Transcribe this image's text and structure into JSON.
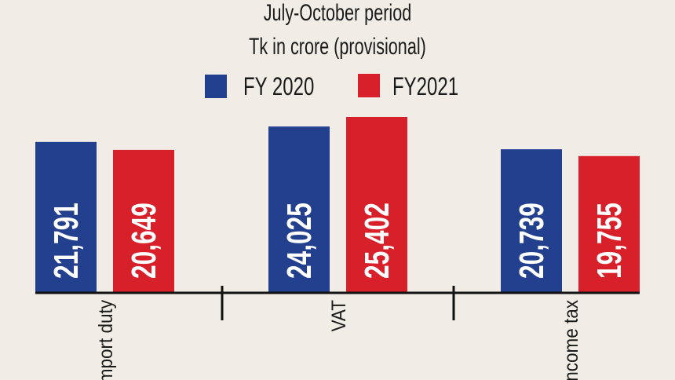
{
  "chart_data": {
    "type": "bar",
    "title": "July-October period",
    "subtitle": "Tk in crore (provisional)",
    "categories": [
      "Import duty",
      "VAT",
      "Income tax"
    ],
    "series": [
      {
        "name": "FY 2020",
        "color": "#23408e",
        "values": [
          21791,
          24025,
          20739
        ],
        "labels": [
          "21,791",
          "24,025",
          "20,739"
        ]
      },
      {
        "name": "FY2021",
        "color": "#d8202b",
        "values": [
          20649,
          25402,
          19755
        ],
        "labels": [
          "20,649",
          "25,402",
          "19,755"
        ]
      }
    ],
    "ylim": [
      0,
      25402
    ],
    "grid": false,
    "legend": "top-center",
    "xlabel": "",
    "ylabel": ""
  }
}
